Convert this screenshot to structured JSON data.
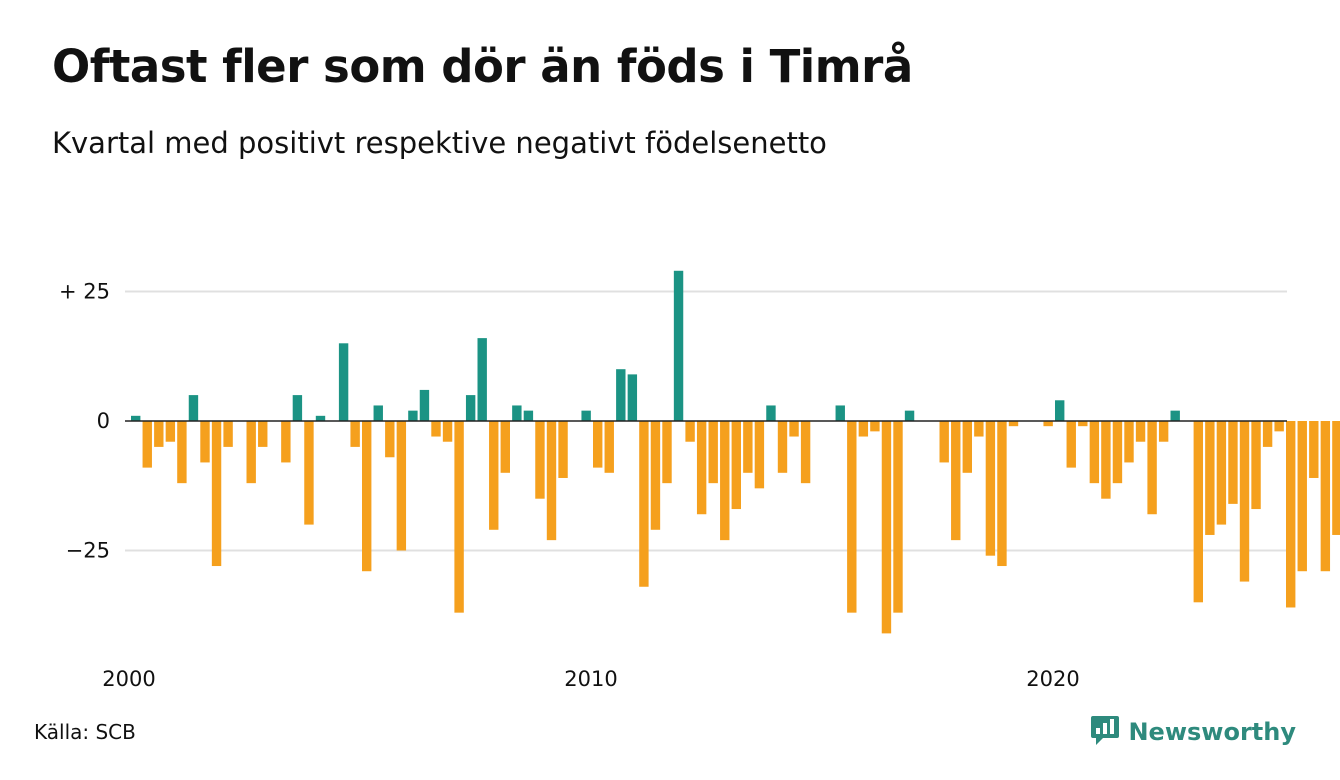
{
  "header": {
    "title": "Oftast fler som dör än föds i Timrå",
    "subtitle": "Kvartal med positivt respektive negativt födelsenetto"
  },
  "footer": {
    "source": "Källa: SCB",
    "brand": "Newsworthy",
    "brand_icon": "newsworthy-logo-icon"
  },
  "colors": {
    "positive": "#1b9384",
    "negative": "#f5a01d",
    "grid": "#e0e0e0",
    "zero_line": "#222222",
    "brand": "#2e8a7d"
  },
  "chart_data": {
    "type": "bar",
    "start_year": 2000,
    "x_ticks": [
      "2000",
      "2010",
      "2020"
    ],
    "y_ticks": [
      {
        "value": 25,
        "label": "+ 25"
      },
      {
        "value": 0,
        "label": "0"
      },
      {
        "value": -25,
        "label": "−25"
      }
    ],
    "ylim": [
      -45,
      30
    ],
    "grid": true,
    "values": [
      1,
      -9,
      -5,
      -4,
      -12,
      5,
      -8,
      -28,
      -5,
      0,
      -12,
      -5,
      0,
      -8,
      5,
      -20,
      1,
      0,
      15,
      -5,
      -29,
      3,
      -7,
      -25,
      2,
      6,
      -3,
      -4,
      -37,
      5,
      16,
      -21,
      -10,
      3,
      2,
      -15,
      -23,
      -11,
      0,
      2,
      -9,
      -10,
      10,
      9,
      -32,
      -21,
      -12,
      29,
      -4,
      -18,
      -12,
      -23,
      -17,
      -10,
      -13,
      3,
      -10,
      -3,
      -12,
      0,
      0,
      3,
      -37,
      -3,
      -2,
      -41,
      -37,
      2,
      0,
      0,
      -8,
      -23,
      -10,
      -3,
      -26,
      -28,
      -1,
      0,
      0,
      -1,
      4,
      -9,
      -1,
      -12,
      -15,
      -12,
      -8,
      -4,
      -18,
      -4,
      2,
      0,
      -35,
      -22,
      -20,
      -16,
      -31,
      -17,
      -5,
      -2,
      -36,
      -29,
      -11,
      -29,
      -22
    ]
  }
}
